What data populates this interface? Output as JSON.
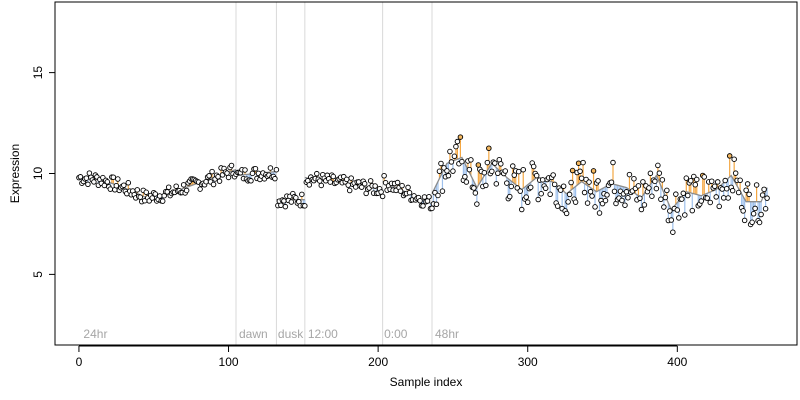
{
  "chart_data": {
    "type": "scatter",
    "title": "",
    "xlabel": "Sample index",
    "ylabel": "Expression",
    "xlim": [
      -16,
      480
    ],
    "ylim": [
      1.5,
      18.5
    ],
    "xticks": [
      0,
      100,
      200,
      300,
      400
    ],
    "yticks": [
      5,
      10,
      15
    ],
    "grid": false,
    "legend": "none",
    "segment_boundaries": [
      105,
      132,
      151,
      203,
      236
    ],
    "segment_labels": [
      {
        "label": "24hr",
        "x": 3
      },
      {
        "label": "dawn",
        "x": 107
      },
      {
        "label": "dusk",
        "x": 133
      },
      {
        "label": "12:00",
        "x": 153
      },
      {
        "label": "0:00",
        "x": 204
      },
      {
        "label": "48hr",
        "x": 238
      }
    ],
    "colors": {
      "axis": "#000000",
      "divider": "#d9d9d9",
      "segment_label": "#a6a6a6",
      "above_fit": "#f4a742",
      "below_fit": "#9ec0ec",
      "fit_line": "#8c8c8c",
      "point_fill": "#ffffff",
      "point_fill_highlight": "#f4b860",
      "point_stroke": "#000000"
    },
    "trend": [
      {
        "from": 0,
        "to": 105,
        "x": [
          0,
          15,
          30,
          45,
          60,
          75,
          90,
          105
        ],
        "y": [
          9.8,
          9.7,
          9.3,
          8.8,
          9.0,
          9.4,
          9.8,
          10.2
        ]
      },
      {
        "from": 105,
        "to": 132,
        "x": [
          105,
          132
        ],
        "y": [
          9.9,
          10.1
        ]
      },
      {
        "from": 132,
        "to": 151,
        "x": [
          132,
          151
        ],
        "y": [
          8.7,
          8.7
        ]
      },
      {
        "from": 151,
        "to": 203,
        "x": [
          151,
          203
        ],
        "y": [
          9.8,
          9.2
        ]
      },
      {
        "from": 203,
        "to": 236,
        "x": [
          203,
          236
        ],
        "y": [
          9.6,
          8.5
        ]
      },
      {
        "from": 236,
        "to": 460,
        "x": [
          236,
          246,
          256,
          266,
          276,
          286,
          296,
          306,
          316,
          326,
          336,
          346,
          356,
          366,
          376,
          386,
          396,
          406,
          416,
          426,
          436,
          446,
          456,
          460
        ],
        "y": [
          9.0,
          10.5,
          10.8,
          9.3,
          10.5,
          9.8,
          9.2,
          9.8,
          9.6,
          9.0,
          9.6,
          9.1,
          9.5,
          9.3,
          8.8,
          9.9,
          8.2,
          9.1,
          8.9,
          9.2,
          9.9,
          8.6,
          8.6,
          9.3
        ]
      }
    ]
  }
}
